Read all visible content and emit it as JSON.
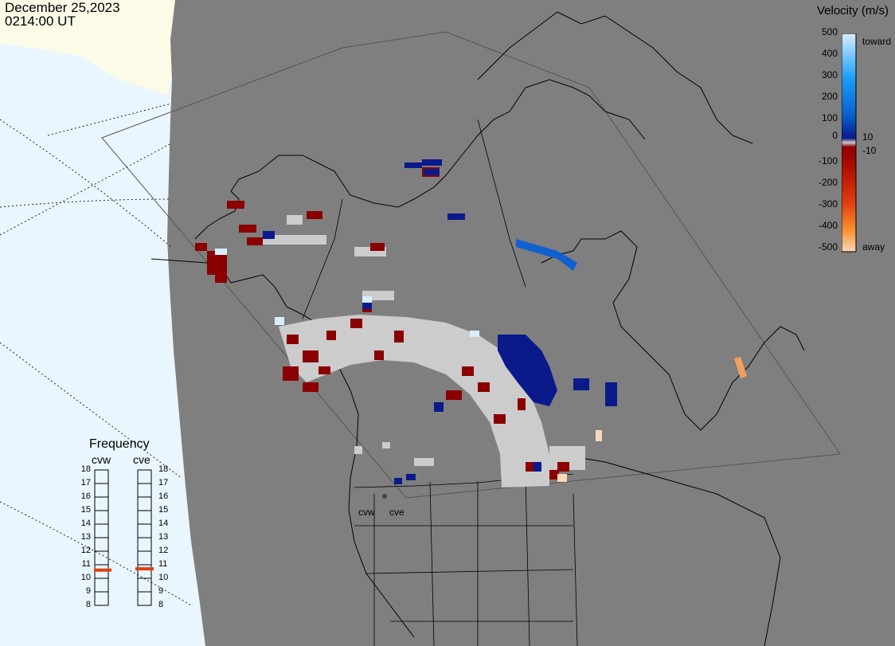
{
  "header": {
    "date": "December 25,2023",
    "time": "0214:00 UT"
  },
  "velocity_legend": {
    "title": "Velocity (m/s)",
    "ticks": [
      "500",
      "400",
      "300",
      "200",
      "100",
      "10",
      "0",
      "-10",
      "-100",
      "-200",
      "-300",
      "-400",
      "-500"
    ],
    "toward_label": "toward",
    "away_label": "away",
    "colors": {
      "toward_light": "#d8eefe",
      "toward_mid": "#1e90e8",
      "toward_dark": "#0a1a8a",
      "away_dark": "#8a0000",
      "away_mid": "#e04010",
      "away_light": "#f8c8a0",
      "ground_scatter": "#cccccc"
    }
  },
  "frequency_panel": {
    "title": "Frequency",
    "radars": [
      "cvw",
      "cve"
    ],
    "scale": [
      "18",
      "17",
      "16",
      "15",
      "14",
      "13",
      "12",
      "11",
      "10",
      "9",
      "8"
    ],
    "values_mhz": [
      10.6,
      10.7
    ],
    "marker_color": "#e04010"
  },
  "sites": {
    "cvw_label": "cvw",
    "cve_label": "cve"
  },
  "map_colors": {
    "land": "#7f7f7f",
    "ocean": "#eaf6ff",
    "ice": "#fbfbe8",
    "coast": "#000000"
  }
}
